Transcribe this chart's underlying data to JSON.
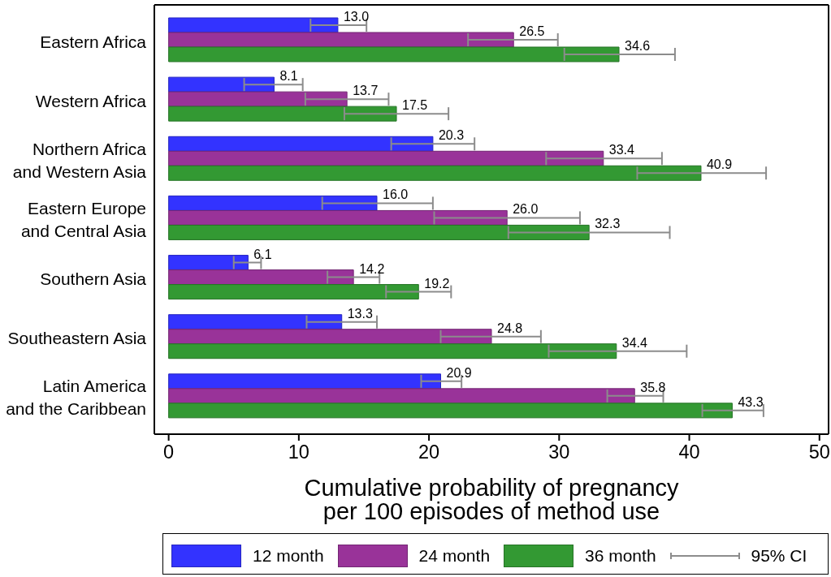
{
  "chart_data": {
    "type": "bar",
    "orientation": "horizontal",
    "categories": [
      "Eastern Africa",
      "Western Africa",
      "Northern Africa\nand Western Asia",
      "Eastern Europe\nand Central Asia",
      "Southern Asia",
      "Southeastern Asia",
      "Latin America\nand the Caribbean"
    ],
    "series": [
      {
        "name": "12 month",
        "color": "#3333ff",
        "values": [
          13.0,
          8.1,
          20.3,
          16.0,
          6.1,
          13.3,
          20.9
        ],
        "value_labels": [
          "13.0",
          "8.1",
          "20.3",
          "16.0",
          "6.1",
          "13.3",
          "20.9"
        ],
        "errors": [
          [
            10.9,
            15.2
          ],
          [
            5.8,
            10.3
          ],
          [
            17.1,
            23.5
          ],
          [
            11.8,
            20.3
          ],
          [
            5.0,
            7.1
          ],
          [
            10.6,
            16.0
          ],
          [
            19.4,
            22.5
          ]
        ]
      },
      {
        "name": "24 month",
        "color": "#993399",
        "values": [
          26.5,
          13.7,
          33.4,
          26.0,
          14.2,
          24.8,
          35.8
        ],
        "value_labels": [
          "26.5",
          "13.7",
          "33.4",
          "26.0",
          "14.2",
          "24.8",
          "35.8"
        ],
        "errors": [
          [
            23.0,
            29.9
          ],
          [
            10.5,
            16.9
          ],
          [
            29.0,
            37.9
          ],
          [
            20.4,
            31.6
          ],
          [
            12.2,
            16.2
          ],
          [
            20.9,
            28.6
          ],
          [
            33.7,
            38.0
          ]
        ]
      },
      {
        "name": "36 month",
        "color": "#339933",
        "values": [
          34.6,
          17.5,
          40.9,
          32.3,
          19.2,
          34.4,
          43.3
        ],
        "value_labels": [
          "34.6",
          "17.5",
          "40.9",
          "32.3",
          "19.2",
          "34.4",
          "43.3"
        ],
        "errors": [
          [
            30.4,
            38.9
          ],
          [
            13.5,
            21.5
          ],
          [
            36.0,
            45.9
          ],
          [
            26.1,
            38.5
          ],
          [
            16.7,
            21.7
          ],
          [
            29.2,
            39.8
          ],
          [
            41.0,
            45.7
          ]
        ]
      }
    ],
    "xlabel": "Cumulative probability of pregnancy\nper 100 episodes of method use",
    "xlim": [
      -1.1,
      50.7
    ],
    "xticks": [
      0,
      10,
      20,
      30,
      40,
      50
    ],
    "legend": "bottom",
    "annotations": [
      "95% CI"
    ]
  }
}
